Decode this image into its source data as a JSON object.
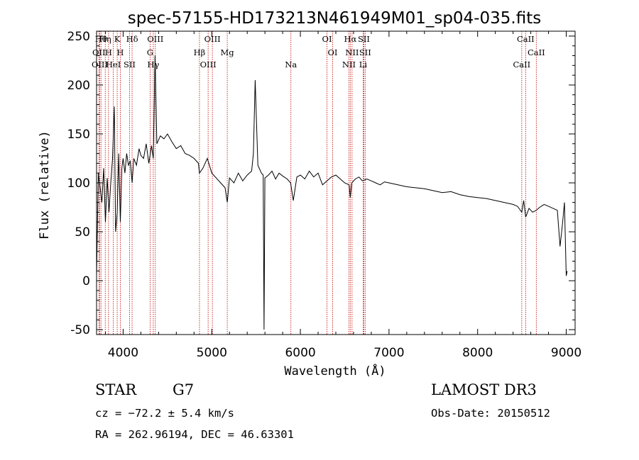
{
  "chart_data": {
    "type": "line",
    "title": "spec-57155-HD173213N461949M01_sp04-035.fits",
    "xlabel": "Wavelength (Å)",
    "ylabel": "Flux (relative)",
    "xlim": [
      3700,
      9100
    ],
    "ylim": [
      -55,
      255
    ],
    "xticks": [
      "4000",
      "5000",
      "6000",
      "7000",
      "8000",
      "9000"
    ],
    "yticks": [
      "-50",
      "0",
      "50",
      "100",
      "150",
      "200",
      "250"
    ],
    "grid": false,
    "series": [
      {
        "x": [
          3700,
          3720,
          3740,
          3760,
          3780,
          3800,
          3820,
          3840,
          3860,
          3880,
          3900,
          3915,
          3933,
          3950,
          3968,
          3985,
          4000,
          4020,
          4040,
          4060,
          4080,
          4101,
          4120,
          4150,
          4180,
          4200,
          4230,
          4260,
          4290,
          4320,
          4340,
          4360,
          4380,
          4420,
          4460,
          4500,
          4550,
          4600,
          4650,
          4700,
          4750,
          4800,
          4850,
          4861,
          4900,
          4950,
          5000,
          5050,
          5100,
          5150,
          5175,
          5200,
          5250,
          5300,
          5350,
          5400,
          5450,
          5470,
          5490,
          5520,
          5560,
          5580,
          5590,
          5600,
          5640,
          5680,
          5720,
          5760,
          5800,
          5850,
          5890,
          5920,
          5960,
          6000,
          6050,
          6100,
          6150,
          6200,
          6250,
          6300,
          6350,
          6400,
          6450,
          6500,
          6550,
          6563,
          6580,
          6620,
          6660,
          6700,
          6750,
          6800,
          6850,
          6900,
          6950,
          7000,
          7100,
          7200,
          7300,
          7400,
          7500,
          7600,
          7700,
          7800,
          7900,
          8000,
          8100,
          8200,
          8300,
          8400,
          8450,
          8498,
          8520,
          8542,
          8580,
          8620,
          8662,
          8700,
          8750,
          8800,
          8850,
          8900,
          8930,
          8960,
          8980,
          9000,
          9010
        ],
        "values": [
          5,
          110,
          95,
          80,
          115,
          60,
          105,
          70,
          100,
          125,
          178,
          50,
          70,
          130,
          60,
          115,
          125,
          110,
          130,
          118,
          122,
          100,
          125,
          118,
          135,
          128,
          125,
          140,
          120,
          138,
          125,
          230,
          140,
          148,
          145,
          150,
          142,
          135,
          138,
          130,
          128,
          125,
          120,
          110,
          115,
          125,
          110,
          105,
          100,
          95,
          80,
          105,
          100,
          110,
          102,
          108,
          112,
          130,
          205,
          118,
          110,
          108,
          -50,
          105,
          108,
          112,
          104,
          110,
          107,
          104,
          100,
          82,
          106,
          108,
          104,
          112,
          106,
          110,
          98,
          102,
          106,
          108,
          104,
          100,
          98,
          85,
          100,
          104,
          106,
          102,
          104,
          102,
          100,
          98,
          101,
          100,
          98,
          96,
          95,
          94,
          92,
          90,
          91,
          88,
          86,
          85,
          84,
          82,
          80,
          78,
          76,
          70,
          82,
          65,
          74,
          70,
          72,
          75,
          78,
          76,
          74,
          72,
          35,
          60,
          80,
          5,
          10
        ]
      }
    ],
    "line_markers": [
      {
        "wavelength": 3750,
        "label": "Hθ"
      },
      {
        "wavelength": 3726,
        "label": "OII"
      },
      {
        "wavelength": 3736,
        "label": "OIII"
      },
      {
        "wavelength": 3798,
        "label": "Hη"
      },
      {
        "wavelength": 3835,
        "label": "H"
      },
      {
        "wavelength": 3889,
        "label": "HeI"
      },
      {
        "wavelength": 3933,
        "label": "K"
      },
      {
        "wavelength": 3968,
        "label": "H"
      },
      {
        "wavelength": 4072,
        "label": "SII"
      },
      {
        "wavelength": 4101,
        "label": "Hδ"
      },
      {
        "wavelength": 4304,
        "label": "G"
      },
      {
        "wavelength": 4340,
        "label": "Hγ"
      },
      {
        "wavelength": 4363,
        "label": "OIII"
      },
      {
        "wavelength": 4861,
        "label": "Hβ"
      },
      {
        "wavelength": 4959,
        "label": "OIII"
      },
      {
        "wavelength": 5007,
        "label": "OIII"
      },
      {
        "wavelength": 5175,
        "label": "Mg"
      },
      {
        "wavelength": 5893,
        "label": "Na"
      },
      {
        "wavelength": 6300,
        "label": "OI"
      },
      {
        "wavelength": 6364,
        "label": "OI"
      },
      {
        "wavelength": 6548,
        "label": "NII"
      },
      {
        "wavelength": 6563,
        "label": "Hα"
      },
      {
        "wavelength": 6583,
        "label": "NII"
      },
      {
        "wavelength": 6708,
        "label": "Li"
      },
      {
        "wavelength": 6716,
        "label": "SII"
      },
      {
        "wavelength": 6731,
        "label": "SII"
      },
      {
        "wavelength": 8498,
        "label": "CaII"
      },
      {
        "wavelength": 8542,
        "label": "CaII"
      },
      {
        "wavelength": 8662,
        "label": "CaII"
      }
    ],
    "colors": {
      "spectrum": "#000000",
      "marker": "#c00000",
      "frame": "#000000"
    }
  },
  "info": {
    "object_class": "STAR",
    "subclass": "G7",
    "survey": "LAMOST DR3",
    "redshift": "cz = −72.2 ± 5.4 km/s",
    "obs_date": "Obs-Date: 20150512",
    "coords": "RA = 262.96194, DEC =  46.63301"
  }
}
